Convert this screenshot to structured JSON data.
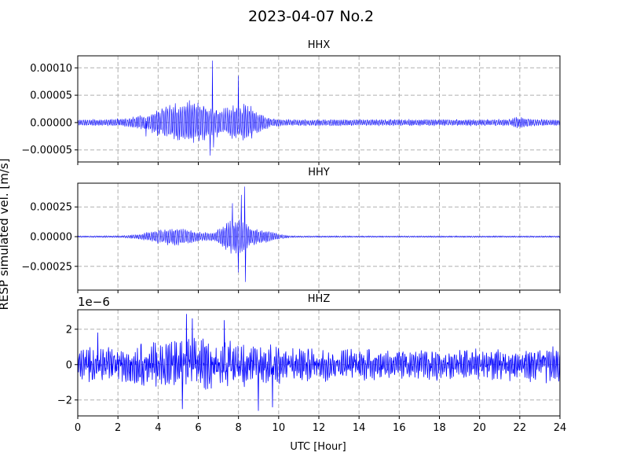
{
  "figure": {
    "title": "2023-04-07 No.2",
    "ylabel": "RESP simulated vel. [m/s]",
    "xlabel": "UTC [Hour]"
  },
  "colors": {
    "trace": "#0000ff",
    "grid": "#b0b0b0",
    "axes": "#000000"
  },
  "chart_data": [
    {
      "type": "line",
      "title": "HHX",
      "xlabel": "",
      "offset_text": "",
      "xlim": [
        0,
        24
      ],
      "ylim": [
        -7.2e-05,
        0.000122
      ],
      "grid": true,
      "xticks": [
        0,
        2,
        4,
        6,
        8,
        10,
        12,
        14,
        16,
        18,
        20,
        22,
        24
      ],
      "xtick_labels": [],
      "yticks": [
        -5e-05,
        0,
        5e-05,
        0.0001
      ],
      "ytick_labels": [
        "−0.00005",
        "0.00000",
        "0.00005",
        "0.00010"
      ],
      "series": [
        {
          "x_range": [
            0,
            24
          ],
          "approx_peak": [
            6.7,
            0.000113
          ],
          "approx_trough": [
            6.6,
            -6e-05
          ],
          "quiet_amplitude": 4e-06,
          "values": []
        }
      ]
    },
    {
      "type": "line",
      "title": "HHY",
      "xlabel": "",
      "offset_text": "",
      "xlim": [
        0,
        24
      ],
      "ylim": [
        -0.00045,
        0.00045
      ],
      "grid": true,
      "xticks": [
        0,
        2,
        4,
        6,
        8,
        10,
        12,
        14,
        16,
        18,
        20,
        22,
        24
      ],
      "xtick_labels": [],
      "yticks": [
        -0.00025,
        0,
        0.00025
      ],
      "ytick_labels": [
        "−0.00025",
        "0.00000",
        "0.00025"
      ],
      "series": [
        {
          "x_range": [
            0,
            24
          ],
          "approx_peak": [
            8.3,
            0.00042
          ],
          "approx_trough": [
            8.35,
            -0.00038
          ],
          "quiet_amplitude": 5e-06,
          "values": []
        }
      ]
    },
    {
      "type": "line",
      "title": "HHZ",
      "xlabel": "UTC [Hour]",
      "offset_text": "1e−6",
      "xlim": [
        0,
        24
      ],
      "ylim": [
        -2.9,
        3.1
      ],
      "grid": true,
      "xticks": [
        0,
        2,
        4,
        6,
        8,
        10,
        12,
        14,
        16,
        18,
        20,
        22,
        24
      ],
      "xtick_labels": [
        "0",
        "2",
        "4",
        "6",
        "8",
        "10",
        "12",
        "14",
        "16",
        "18",
        "20",
        "22",
        "24"
      ],
      "yticks": [
        -2,
        0,
        2
      ],
      "ytick_labels": [
        "−2",
        "0",
        "2"
      ],
      "series": [
        {
          "x_range": [
            0,
            24
          ],
          "approx_peak": [
            5.4,
            2.85
          ],
          "approx_trough": [
            9.0,
            -2.6
          ],
          "quiet_amplitude": 0.8,
          "values": []
        }
      ]
    }
  ]
}
